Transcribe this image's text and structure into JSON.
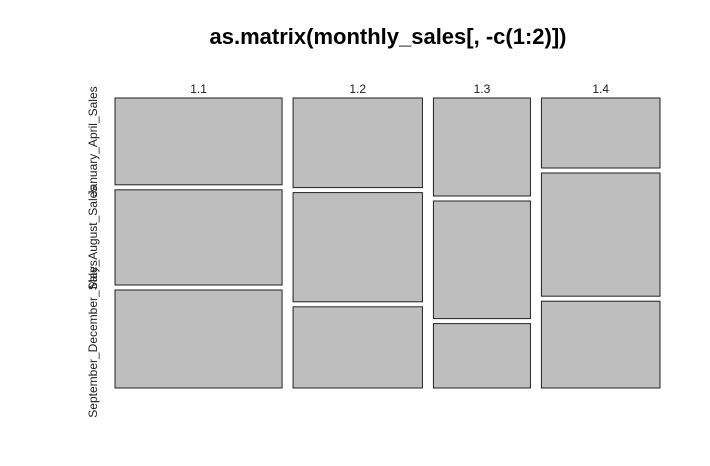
{
  "chart_data": {
    "type": "mosaic",
    "title": "as.matrix(monthly_sales[, -c(1:2)])",
    "columns": [
      "1.1",
      "1.2",
      "1.3",
      "1.4"
    ],
    "rows": [
      "January_April_Sales",
      "May_August_Sales",
      "September_December_Sales"
    ],
    "column_proportions": [
      0.31,
      0.24,
      0.18,
      0.22
    ],
    "cell_proportions": [
      [
        0.31,
        0.34,
        0.35
      ],
      [
        0.32,
        0.39,
        0.29
      ],
      [
        0.35,
        0.42,
        0.23
      ],
      [
        0.25,
        0.44,
        0.31
      ]
    ],
    "fill_color": "#bebebe",
    "border_color": "#222222"
  }
}
